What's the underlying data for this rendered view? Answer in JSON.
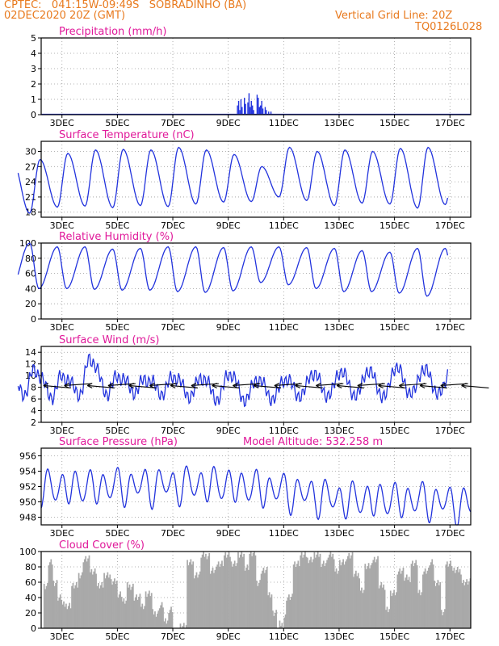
{
  "header": {
    "line1": "CPTEC:   041:15W-09:49S   SOBRADINHO (BA)",
    "line2": "02DEC2020 20Z (GMT)",
    "right1": "Vertical Grid Line: 20Z",
    "right2": "TQ0126L028"
  },
  "colors": {
    "header": "#e87a1e",
    "title": "#e0199a",
    "line": "#2233dd",
    "bar": "#2233dd",
    "cloud": "#a9a9a9",
    "arrow": "#000000"
  },
  "x_axis": {
    "start_hour": 0,
    "end_hour": 372,
    "ticks": [
      {
        "hour": 18,
        "label": "3DEC"
      },
      {
        "hour": 66,
        "label": "5DEC"
      },
      {
        "hour": 114,
        "label": "7DEC"
      },
      {
        "hour": 162,
        "label": "9DEC"
      },
      {
        "hour": 210,
        "label": "11DEC"
      },
      {
        "hour": 258,
        "label": "13DEC"
      },
      {
        "hour": 306,
        "label": "15DEC"
      },
      {
        "hour": 354,
        "label": "17DEC"
      }
    ]
  },
  "chart_data": [
    {
      "id": "precip",
      "type": "bar",
      "title": "Precipitation (mm/h)",
      "ylim": [
        0,
        5
      ],
      "yticks": [
        0,
        1,
        2,
        3,
        4,
        5
      ],
      "points": [
        [
          170,
          0.6
        ],
        [
          171,
          0.9
        ],
        [
          172,
          0.3
        ],
        [
          173,
          1.0
        ],
        [
          174,
          0.5
        ],
        [
          176,
          1.1
        ],
        [
          177,
          0.7
        ],
        [
          179,
          0.8
        ],
        [
          180,
          1.4
        ],
        [
          181,
          0.5
        ],
        [
          182,
          0.9
        ],
        [
          183,
          0.6
        ],
        [
          184,
          0.3
        ],
        [
          187,
          1.3
        ],
        [
          188,
          1.1
        ],
        [
          189,
          0.5
        ],
        [
          190,
          0.6
        ],
        [
          191,
          0.9
        ],
        [
          192,
          0.4
        ],
        [
          194,
          0.5
        ],
        [
          195,
          0.3
        ],
        [
          197,
          0.2
        ],
        [
          199,
          0.2
        ]
      ]
    },
    {
      "id": "temp",
      "type": "line",
      "title": "Surface Temperature (nC)",
      "ylim": [
        17,
        32
      ],
      "yticks": [
        18,
        21,
        24,
        27,
        30
      ],
      "daily_min": [
        17.8,
        19.0,
        19.2,
        18.9,
        19.3,
        19.1,
        19.6,
        20.0,
        20.1,
        21.0,
        20.3,
        19.3,
        19.8,
        19.6,
        18.8,
        19.5
      ],
      "daily_max": [
        28.4,
        29.6,
        30.3,
        30.4,
        30.3,
        30.8,
        30.3,
        29.4,
        27.0,
        30.8,
        30.0,
        30.3,
        30.0,
        30.6,
        30.8,
        30.8,
        30.8
      ]
    },
    {
      "id": "rh",
      "type": "line",
      "title": "Relative Humidity (%)",
      "ylim": [
        0,
        100
      ],
      "yticks": [
        0,
        20,
        40,
        60,
        80,
        100
      ],
      "daily_min": [
        40,
        40,
        39,
        38,
        38,
        36,
        35,
        37,
        48,
        45,
        40,
        36,
        36,
        34,
        30,
        30
      ],
      "daily_max": [
        100,
        95,
        95,
        92,
        93,
        95,
        95,
        94,
        95,
        95,
        94,
        93,
        90,
        88,
        93,
        93
      ]
    },
    {
      "id": "wind",
      "type": "line",
      "title": "Surface Wind (m/s)",
      "ylim": [
        2,
        15
      ],
      "yticks": [
        2,
        4,
        6,
        8,
        10,
        12,
        14
      ],
      "daily_min": [
        7,
        6.5,
        7,
        7,
        7.3,
        7,
        6.5,
        6,
        5.8,
        6,
        6.5,
        6.5,
        6.5,
        6.3,
        6.8
      ],
      "daily_max": [
        11,
        10,
        13,
        10,
        9.5,
        10,
        9.8,
        10.5,
        9.5,
        9.5,
        10.5,
        10.8,
        11,
        11.5,
        11.2
      ],
      "arrow_hours": [
        2,
        20,
        40,
        58,
        76,
        94,
        112,
        130,
        148,
        166,
        184,
        202,
        220,
        238,
        256,
        274,
        292,
        310,
        328,
        346,
        364
      ]
    },
    {
      "id": "pres",
      "type": "line",
      "title": "Surface Pressure (hPa)",
      "subtitle": "Model Altitude: 532.258 m",
      "ylim": [
        947,
        957
      ],
      "yticks": [
        948,
        950,
        952,
        954,
        956
      ],
      "amp_tidal": 2.6,
      "trend": [
        [
          0,
          951.8
        ],
        [
          60,
          952.0
        ],
        [
          150,
          952.3
        ],
        [
          200,
          951.6
        ],
        [
          260,
          950.3
        ],
        [
          330,
          950.2
        ],
        [
          372,
          949.6
        ]
      ]
    },
    {
      "id": "cloud",
      "type": "bar",
      "title": "Cloud Cover (%)",
      "ylim": [
        0,
        100
      ],
      "yticks": [
        0,
        20,
        40,
        60,
        80,
        100
      ],
      "segments": [
        [
          0,
          2,
          0
        ],
        [
          2,
          6,
          55
        ],
        [
          6,
          10,
          85
        ],
        [
          10,
          14,
          60
        ],
        [
          14,
          18,
          40
        ],
        [
          18,
          26,
          30
        ],
        [
          26,
          32,
          55
        ],
        [
          32,
          36,
          70
        ],
        [
          36,
          42,
          90
        ],
        [
          42,
          48,
          75
        ],
        [
          48,
          54,
          55
        ],
        [
          54,
          60,
          70
        ],
        [
          60,
          66,
          60
        ],
        [
          66,
          70,
          45
        ],
        [
          70,
          74,
          35
        ],
        [
          74,
          80,
          55
        ],
        [
          80,
          86,
          40
        ],
        [
          86,
          90,
          30
        ],
        [
          90,
          96,
          45
        ],
        [
          96,
          102,
          20
        ],
        [
          102,
          106,
          30
        ],
        [
          106,
          110,
          8
        ],
        [
          110,
          114,
          25
        ],
        [
          114,
          120,
          0
        ],
        [
          120,
          126,
          4
        ],
        [
          126,
          132,
          85
        ],
        [
          132,
          138,
          70
        ],
        [
          138,
          146,
          95
        ],
        [
          146,
          152,
          75
        ],
        [
          152,
          158,
          85
        ],
        [
          158,
          164,
          95
        ],
        [
          164,
          170,
          85
        ],
        [
          170,
          176,
          95
        ],
        [
          176,
          180,
          80
        ],
        [
          180,
          186,
          97
        ],
        [
          186,
          190,
          60
        ],
        [
          190,
          196,
          75
        ],
        [
          196,
          200,
          45
        ],
        [
          200,
          204,
          20
        ],
        [
          204,
          206,
          0
        ],
        [
          206,
          210,
          5
        ],
        [
          210,
          212,
          15
        ],
        [
          212,
          218,
          40
        ],
        [
          218,
          224,
          85
        ],
        [
          224,
          230,
          95
        ],
        [
          230,
          236,
          90
        ],
        [
          236,
          242,
          95
        ],
        [
          242,
          248,
          85
        ],
        [
          248,
          254,
          95
        ],
        [
          254,
          258,
          75
        ],
        [
          258,
          264,
          85
        ],
        [
          264,
          270,
          95
        ],
        [
          270,
          276,
          70
        ],
        [
          276,
          280,
          50
        ],
        [
          280,
          286,
          80
        ],
        [
          286,
          292,
          90
        ],
        [
          292,
          298,
          55
        ],
        [
          298,
          302,
          25
        ],
        [
          302,
          308,
          45
        ],
        [
          308,
          314,
          75
        ],
        [
          314,
          320,
          65
        ],
        [
          320,
          326,
          85
        ],
        [
          326,
          330,
          45
        ],
        [
          330,
          336,
          75
        ],
        [
          336,
          340,
          85
        ],
        [
          340,
          346,
          60
        ],
        [
          346,
          350,
          20
        ],
        [
          350,
          356,
          85
        ],
        [
          356,
          364,
          75
        ],
        [
          364,
          372,
          60
        ]
      ]
    }
  ]
}
